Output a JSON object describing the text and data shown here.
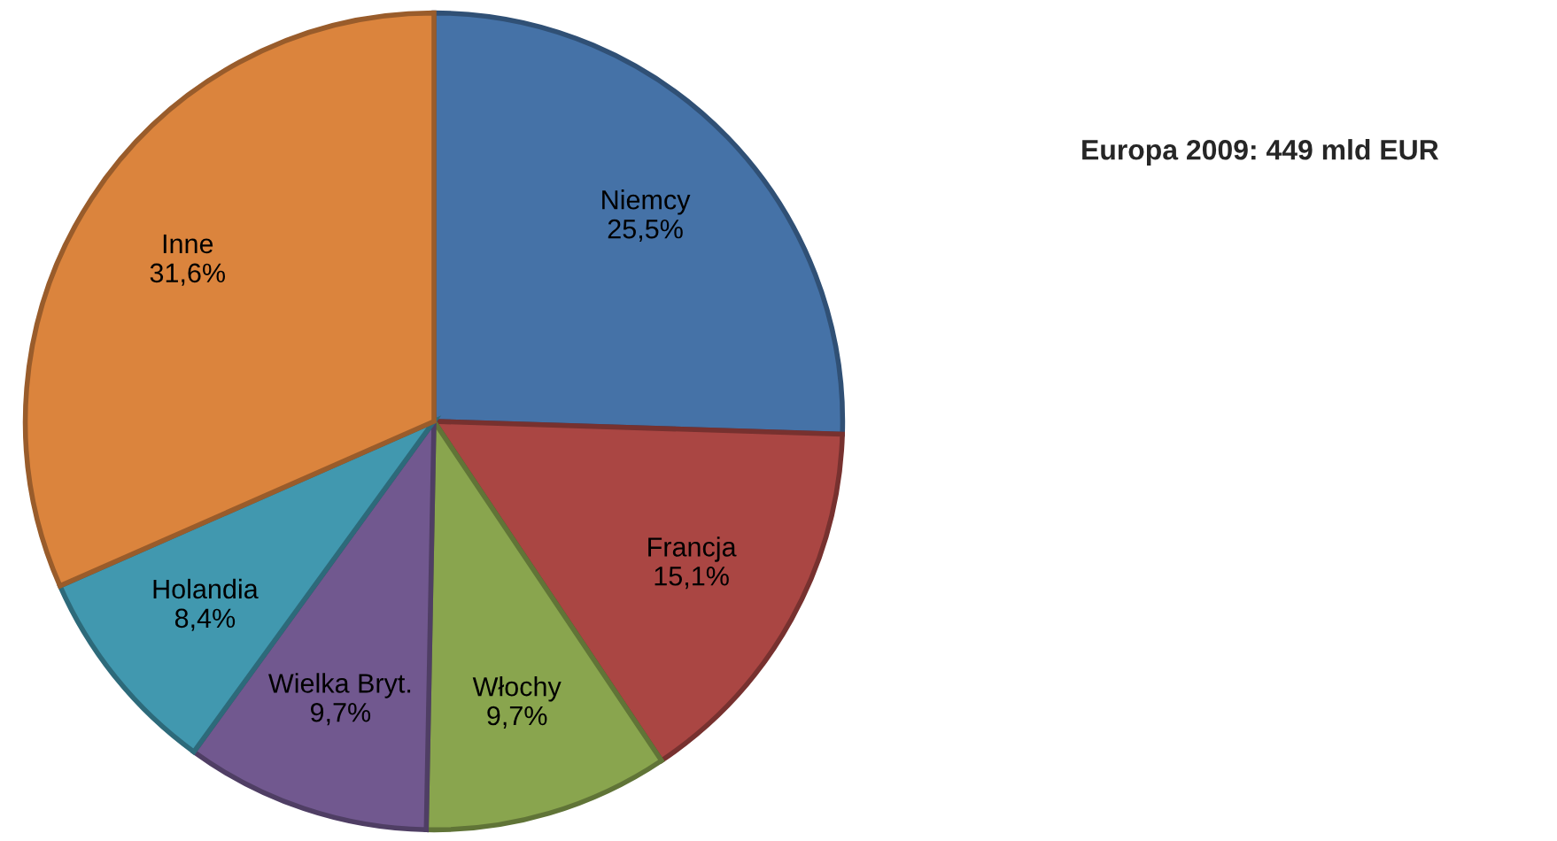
{
  "chart_data": {
    "type": "pie",
    "title": "Europa 2009: 449 mld EUR",
    "categories": [
      "Niemcy",
      "Francja",
      "Włochy",
      "Wielka Bryt.",
      "Holandia",
      "Inne"
    ],
    "values": [
      25.5,
      15.1,
      9.7,
      9.7,
      8.4,
      31.6
    ],
    "value_labels": [
      "25,5%",
      "15,1%",
      "9,7%",
      "9,7%",
      "8,4%",
      "31,6%"
    ],
    "colors": [
      "#4572a7",
      "#aa4643",
      "#89a54e",
      "#71588f",
      "#4198af",
      "#db843d"
    ],
    "legend": false
  }
}
